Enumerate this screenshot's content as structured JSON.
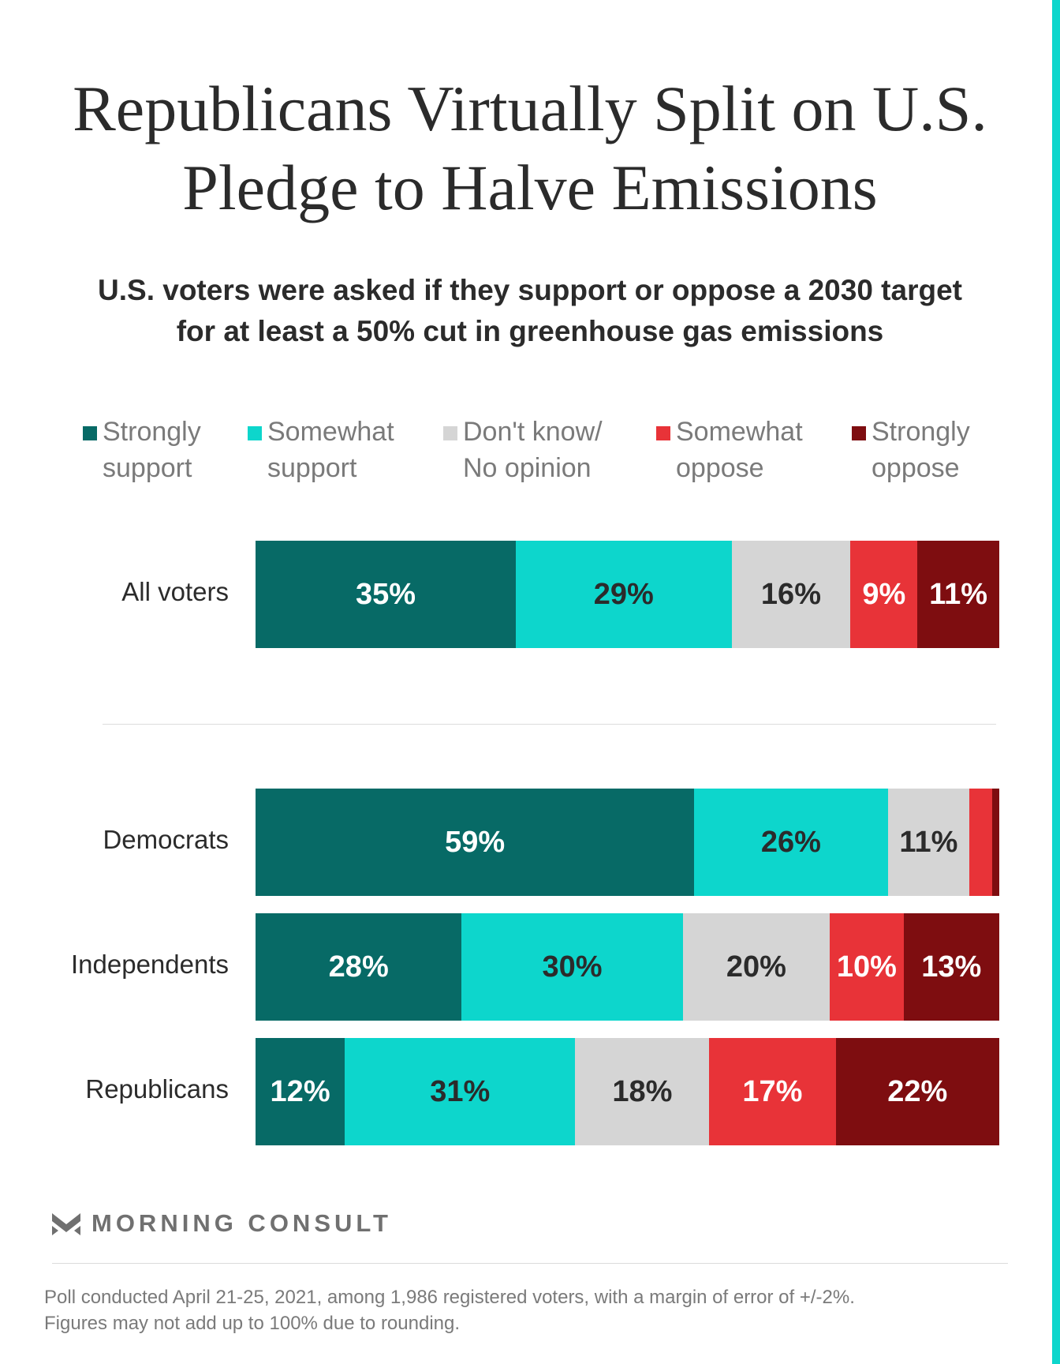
{
  "chart_data": {
    "type": "bar",
    "orientation": "horizontal-stacked",
    "title": "Republicans Virtually Split on U.S. Pledge to Halve Emissions",
    "subtitle": "U.S. voters were asked if they support or oppose a 2030 target for at least a 50% cut in greenhouse gas emissions",
    "legend": [
      {
        "label1": "Strongly",
        "label2": "support",
        "color": "#076a66"
      },
      {
        "label1": "Somewhat",
        "label2": "support",
        "color": "#0dd6cc"
      },
      {
        "label1": "Don't know/",
        "label2": "No opinion",
        "color": "#d5d5d5"
      },
      {
        "label1": "Somewhat",
        "label2": "oppose",
        "color": "#e83338"
      },
      {
        "label1": "Strongly",
        "label2": "oppose",
        "color": "#7e0d10"
      }
    ],
    "legend_position": "top",
    "label_colors": [
      "#ffffff",
      "#2b2b2b",
      "#2b2b2b",
      "#ffffff",
      "#ffffff"
    ],
    "rows": [
      {
        "name": "All voters",
        "values": [
          35,
          29,
          16,
          9,
          11
        ],
        "labels": [
          "35%",
          "29%",
          "16%",
          "9%",
          "11%"
        ]
      },
      {
        "name": "Democrats",
        "values": [
          59,
          26,
          11,
          3,
          1
        ],
        "labels": [
          "59%",
          "26%",
          "11%",
          "",
          ""
        ]
      },
      {
        "name": "Independents",
        "values": [
          28,
          30,
          20,
          10,
          13
        ],
        "labels": [
          "28%",
          "30%",
          "20%",
          "10%",
          "13%"
        ]
      },
      {
        "name": "Republicans",
        "values": [
          12,
          31,
          18,
          17,
          22
        ],
        "labels": [
          "12%",
          "31%",
          "18%",
          "17%",
          "22%"
        ]
      }
    ]
  },
  "brand": {
    "name": "MORNING CONSULT"
  },
  "footer": {
    "line1": "Poll conducted April 21-25, 2021, among 1,986 registered voters, with a margin of error of +/-2%.",
    "line2": "Figures may not add up to 100% due to rounding."
  }
}
